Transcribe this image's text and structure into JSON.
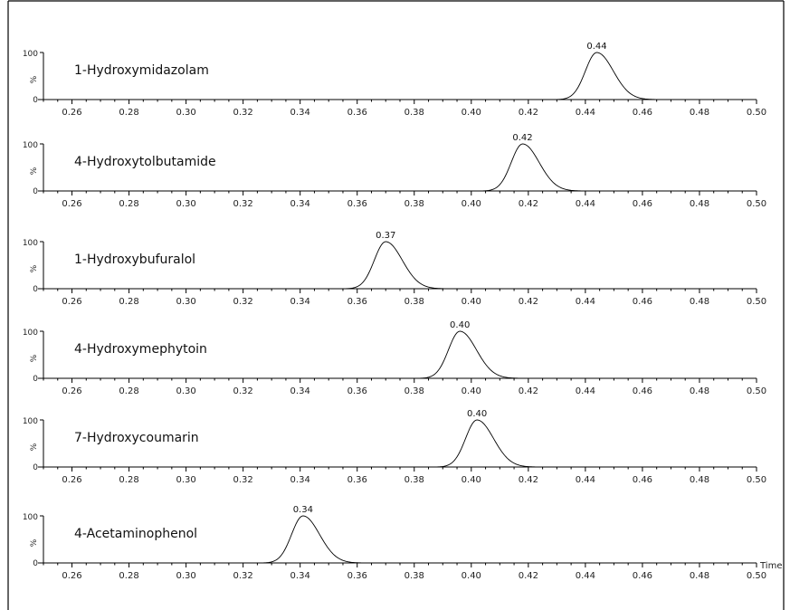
{
  "chart_data": {
    "type": "line",
    "xlabel": "Time",
    "x_ticks": [
      0.26,
      0.28,
      0.3,
      0.32,
      0.34,
      0.36,
      0.38,
      0.4,
      0.42,
      0.44,
      0.46,
      0.48,
      0.5
    ],
    "x_tick_labels": [
      "0.26",
      "0.28",
      "0.30",
      "0.32",
      "0.34",
      "0.36",
      "0.38",
      "0.40",
      "0.42",
      "0.44",
      "0.46",
      "0.48",
      "0.50"
    ],
    "xlim": [
      0.25,
      0.5
    ],
    "ylim": [
      0,
      100
    ],
    "y_ticks": [
      "100",
      "0"
    ],
    "ylabel": "%",
    "panels": [
      {
        "name": "1-Hydroxymidazolam",
        "peak_time": 0.444,
        "peak_label": "0.44",
        "peak_value": 100
      },
      {
        "name": "4-Hydroxytolbutamide",
        "peak_time": 0.418,
        "peak_label": "0.42",
        "peak_value": 100
      },
      {
        "name": "1-Hydroxybufuralol",
        "peak_time": 0.37,
        "peak_label": "0.37",
        "peak_value": 100
      },
      {
        "name": "4-Hydroxymephytoin",
        "peak_time": 0.396,
        "peak_label": "0.40",
        "peak_value": 100
      },
      {
        "name": "7-Hydroxycoumarin",
        "peak_time": 0.402,
        "peak_label": "0.40",
        "peak_value": 100
      },
      {
        "name": "4-Acetaminophenol",
        "peak_time": 0.341,
        "peak_label": "0.34",
        "peak_value": 100
      }
    ]
  }
}
